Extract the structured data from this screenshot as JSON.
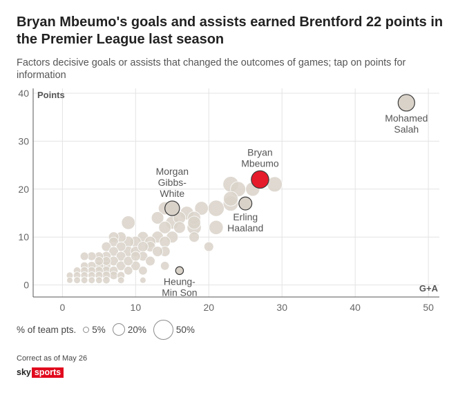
{
  "title": "Bryan Mbeumo's goals and assists earned Brentford 22 points in the Premier League last season",
  "subtitle": "Factors decisive goals or assists that changed the outcomes of games; tap on points for information",
  "legend": {
    "title": "% of team pts.",
    "items": [
      {
        "label": "5%",
        "value": 5
      },
      {
        "label": "20%",
        "value": 20
      },
      {
        "label": "50%",
        "value": 50
      }
    ]
  },
  "footnote": "Correct as of May 26",
  "logo": {
    "sky": "sky",
    "sports": "sports"
  },
  "colors": {
    "default": "#d9d2c9",
    "highlight": "#e51a2b",
    "gridline": "#e3e3e3",
    "axis": "#555555"
  },
  "chart_data": {
    "type": "scatter",
    "xlabel": "G+A",
    "ylabel": "Points",
    "xlim": [
      -4,
      51.5
    ],
    "ylim": [
      -2.5,
      41
    ],
    "xticks": [
      0,
      10,
      20,
      30,
      40,
      50
    ],
    "yticks": [
      0,
      10,
      20,
      30,
      40
    ],
    "grid": true,
    "points": [
      {
        "x": 47,
        "y": 38,
        "pct": 36,
        "label": [
          "Mohamed",
          "Salah"
        ],
        "label_pos": "below",
        "outlined": true
      },
      {
        "x": 27,
        "y": 22,
        "pct": 40,
        "label": [
          "Bryan",
          "Mbeumo"
        ],
        "label_pos": "above",
        "highlight": true
      },
      {
        "x": 15,
        "y": 16,
        "pct": 28,
        "label": [
          "Morgan",
          "Gibbs-",
          "White"
        ],
        "label_pos": "above",
        "outlined": true
      },
      {
        "x": 25,
        "y": 17,
        "pct": 22,
        "label": [
          "Erling",
          "Haaland"
        ],
        "label_pos": "below",
        "outlined": true
      },
      {
        "x": 16,
        "y": 3,
        "pct": 8,
        "label": [
          "Heung-",
          "Min Son"
        ],
        "label_pos": "below",
        "outlined": true
      },
      {
        "x": 23,
        "y": 21,
        "pct": 32
      },
      {
        "x": 29,
        "y": 21,
        "pct": 30
      },
      {
        "x": 24,
        "y": 20,
        "pct": 30
      },
      {
        "x": 23,
        "y": 18,
        "pct": 28
      },
      {
        "x": 26,
        "y": 20,
        "pct": 26
      },
      {
        "x": 21,
        "y": 16,
        "pct": 34
      },
      {
        "x": 23,
        "y": 17,
        "pct": 30
      },
      {
        "x": 21,
        "y": 12,
        "pct": 26
      },
      {
        "x": 19,
        "y": 16,
        "pct": 24
      },
      {
        "x": 18,
        "y": 14,
        "pct": 22
      },
      {
        "x": 17,
        "y": 15,
        "pct": 24
      },
      {
        "x": 14,
        "y": 16,
        "pct": 22
      },
      {
        "x": 13,
        "y": 14,
        "pct": 20
      },
      {
        "x": 15,
        "y": 13,
        "pct": 22
      },
      {
        "x": 16,
        "y": 14,
        "pct": 20
      },
      {
        "x": 18,
        "y": 13,
        "pct": 22
      },
      {
        "x": 18,
        "y": 12,
        "pct": 26
      },
      {
        "x": 14,
        "y": 12,
        "pct": 20
      },
      {
        "x": 13,
        "y": 10,
        "pct": 18
      },
      {
        "x": 16,
        "y": 12,
        "pct": 18
      },
      {
        "x": 9,
        "y": 13,
        "pct": 24
      },
      {
        "x": 15,
        "y": 10,
        "pct": 18
      },
      {
        "x": 14,
        "y": 9,
        "pct": 16
      },
      {
        "x": 11,
        "y": 10,
        "pct": 16
      },
      {
        "x": 12,
        "y": 8,
        "pct": 14
      },
      {
        "x": 10,
        "y": 9,
        "pct": 16
      },
      {
        "x": 8,
        "y": 10,
        "pct": 14
      },
      {
        "x": 9,
        "y": 9,
        "pct": 16
      },
      {
        "x": 7,
        "y": 10,
        "pct": 14
      },
      {
        "x": 7,
        "y": 9,
        "pct": 12
      },
      {
        "x": 8,
        "y": 8,
        "pct": 12
      },
      {
        "x": 9,
        "y": 7,
        "pct": 14
      },
      {
        "x": 10,
        "y": 7,
        "pct": 14
      },
      {
        "x": 11,
        "y": 8,
        "pct": 14
      },
      {
        "x": 11,
        "y": 6,
        "pct": 12
      },
      {
        "x": 12,
        "y": 5,
        "pct": 12
      },
      {
        "x": 14,
        "y": 7,
        "pct": 14
      },
      {
        "x": 14,
        "y": 4,
        "pct": 10
      },
      {
        "x": 20,
        "y": 8,
        "pct": 12
      },
      {
        "x": 18,
        "y": 10,
        "pct": 14
      },
      {
        "x": 6,
        "y": 8,
        "pct": 12
      },
      {
        "x": 7,
        "y": 7,
        "pct": 12
      },
      {
        "x": 6,
        "y": 6,
        "pct": 12
      },
      {
        "x": 5,
        "y": 6,
        "pct": 10
      },
      {
        "x": 4,
        "y": 6,
        "pct": 10
      },
      {
        "x": 3,
        "y": 6,
        "pct": 9
      },
      {
        "x": 8,
        "y": 6,
        "pct": 12
      },
      {
        "x": 7,
        "y": 5,
        "pct": 12
      },
      {
        "x": 8,
        "y": 4,
        "pct": 12
      },
      {
        "x": 10,
        "y": 4,
        "pct": 12
      },
      {
        "x": 11,
        "y": 3,
        "pct": 10
      },
      {
        "x": 9,
        "y": 3,
        "pct": 10
      },
      {
        "x": 8,
        "y": 2,
        "pct": 8
      },
      {
        "x": 6,
        "y": 4,
        "pct": 10
      },
      {
        "x": 5,
        "y": 4,
        "pct": 10
      },
      {
        "x": 4,
        "y": 4,
        "pct": 10
      },
      {
        "x": 3,
        "y": 4,
        "pct": 8
      },
      {
        "x": 6,
        "y": 3,
        "pct": 10
      },
      {
        "x": 5,
        "y": 3,
        "pct": 9
      },
      {
        "x": 4,
        "y": 3,
        "pct": 8
      },
      {
        "x": 3,
        "y": 3,
        "pct": 8
      },
      {
        "x": 2,
        "y": 3,
        "pct": 7
      },
      {
        "x": 7,
        "y": 3,
        "pct": 10
      },
      {
        "x": 7,
        "y": 2,
        "pct": 9
      },
      {
        "x": 6,
        "y": 2,
        "pct": 9
      },
      {
        "x": 5,
        "y": 2,
        "pct": 8
      },
      {
        "x": 4,
        "y": 2,
        "pct": 7
      },
      {
        "x": 3,
        "y": 2,
        "pct": 7
      },
      {
        "x": 2,
        "y": 2,
        "pct": 7
      },
      {
        "x": 1,
        "y": 2,
        "pct": 6
      },
      {
        "x": 2,
        "y": 1,
        "pct": 6
      },
      {
        "x": 3,
        "y": 1,
        "pct": 6
      },
      {
        "x": 4,
        "y": 1,
        "pct": 6
      },
      {
        "x": 5,
        "y": 1,
        "pct": 6
      },
      {
        "x": 6,
        "y": 1,
        "pct": 7
      },
      {
        "x": 1,
        "y": 1,
        "pct": 5
      },
      {
        "x": 11,
        "y": 1,
        "pct": 5
      },
      {
        "x": 8,
        "y": 1,
        "pct": 6
      },
      {
        "x": 6,
        "y": 5,
        "pct": 10
      },
      {
        "x": 9,
        "y": 5,
        "pct": 12
      },
      {
        "x": 5,
        "y": 5,
        "pct": 10
      },
      {
        "x": 10,
        "y": 6,
        "pct": 12
      },
      {
        "x": 13,
        "y": 7,
        "pct": 14
      },
      {
        "x": 12,
        "y": 9,
        "pct": 16
      }
    ]
  }
}
